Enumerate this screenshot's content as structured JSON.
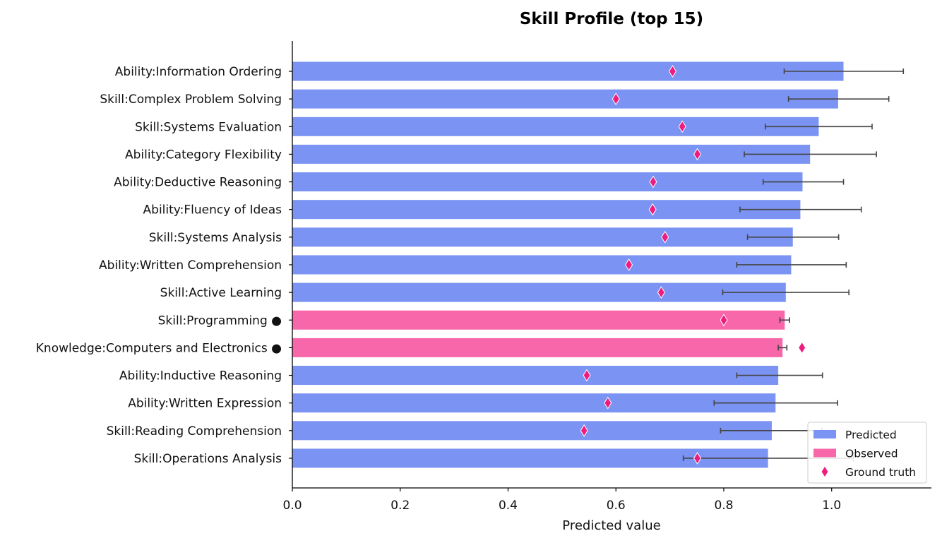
{
  "chart_data": {
    "type": "bar",
    "orientation": "horizontal",
    "title": "Skill Profile (top 15)",
    "xlabel": "Predicted value",
    "ylabel": "",
    "xlim": [
      0,
      1.185
    ],
    "xticks": [
      0.0,
      0.2,
      0.4,
      0.6,
      0.8,
      1.0
    ],
    "xtick_labels": [
      "0.0",
      "0.2",
      "0.4",
      "0.6",
      "0.8",
      "1.0"
    ],
    "grid": false,
    "legend_placement": "bottom-right",
    "legend": [
      {
        "label": "Predicted",
        "kind": "patch",
        "color": "#7b93f2"
      },
      {
        "label": "Observed",
        "kind": "patch",
        "color": "#f767aa"
      },
      {
        "label": "Ground truth",
        "kind": "diamond",
        "color": "#ee1c7f"
      }
    ],
    "colors": {
      "predicted": "#7b93f2",
      "observed": "#f767aa",
      "ground_truth": "#ee1c7f",
      "error_bar": "#444444"
    },
    "categories": [
      "Ability:Information Ordering",
      "Skill:Complex Problem Solving",
      "Skill:Systems Evaluation",
      "Ability:Category Flexibility",
      "Ability:Deductive Reasoning",
      "Ability:Fluency of Ideas",
      "Skill:Systems Analysis",
      "Ability:Written Comprehension",
      "Skill:Active Learning",
      "Skill:Programming ●",
      "Knowledge:Computers and Electronics ●",
      "Ability:Inductive Reasoning",
      "Ability:Written Expression",
      "Skill:Reading Comprehension",
      "Skill:Operations Analysis"
    ],
    "values": [
      1.022,
      1.012,
      0.976,
      0.96,
      0.946,
      0.942,
      0.928,
      0.925,
      0.915,
      0.913,
      0.909,
      0.901,
      0.896,
      0.889,
      0.882
    ],
    "error_low": [
      0.912,
      0.92,
      0.877,
      0.838,
      0.873,
      0.83,
      0.844,
      0.824,
      0.798,
      0.904,
      0.901,
      0.824,
      0.782,
      0.794,
      0.725
    ],
    "error_high": [
      1.133,
      1.106,
      1.075,
      1.083,
      1.022,
      1.055,
      1.013,
      1.027,
      1.032,
      0.922,
      0.917,
      0.983,
      1.011,
      0.982,
      1.04
    ],
    "observed": [
      false,
      false,
      false,
      false,
      false,
      false,
      false,
      false,
      false,
      true,
      true,
      false,
      false,
      false,
      false
    ],
    "ground_truth": [
      0.705,
      0.6,
      0.723,
      0.751,
      0.669,
      0.668,
      0.691,
      0.624,
      0.684,
      0.8,
      0.945,
      0.546,
      0.585,
      0.541,
      0.751
    ]
  }
}
